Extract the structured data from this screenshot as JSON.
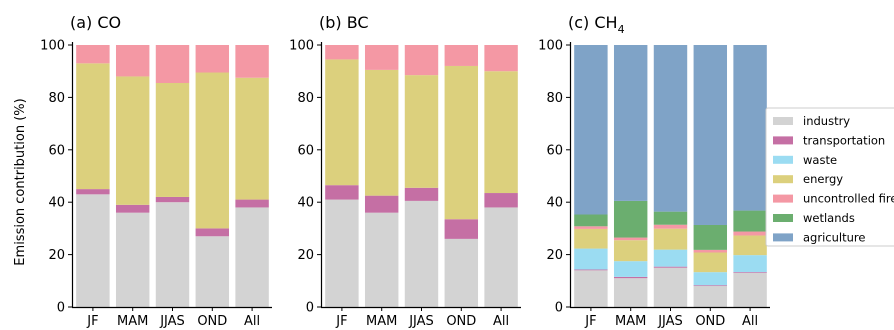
{
  "chart_data": {
    "type": "bar",
    "stacked": true,
    "ylabel": "Emission contribution (%)",
    "ylim": [
      0,
      100
    ],
    "yticks": [
      0,
      20,
      40,
      60,
      80,
      100
    ],
    "categories": [
      "JF",
      "MAM",
      "JJAS",
      "OND",
      "All"
    ],
    "legend": {
      "placement": "right",
      "entries": [
        {
          "name": "industry",
          "color": "#d3d3d3"
        },
        {
          "name": "transportation",
          "color": "#c56fa4"
        },
        {
          "name": "waste",
          "color": "#9bdcf2"
        },
        {
          "name": "energy",
          "color": "#dcd07d"
        },
        {
          "name": "uncontrolled fire",
          "color": "#f498a4"
        },
        {
          "name": "wetlands",
          "color": "#6bae6f"
        },
        {
          "name": "agriculture",
          "color": "#7fa3c7"
        }
      ]
    },
    "panels": [
      {
        "title": "(a) CO",
        "title_sub": "",
        "series": [
          {
            "name": "industry",
            "values": [
              43,
              36,
              40,
              27,
              38
            ]
          },
          {
            "name": "transportation",
            "values": [
              2,
              3,
              2,
              3,
              3
            ]
          },
          {
            "name": "energy",
            "values": [
              48,
              49,
              43.5,
              59.5,
              46.5
            ]
          },
          {
            "name": "uncontrolled fire",
            "values": [
              7,
              12,
              14.5,
              10.5,
              12.5
            ]
          }
        ]
      },
      {
        "title": "(b) BC",
        "title_sub": "",
        "series": [
          {
            "name": "industry",
            "values": [
              41,
              36,
              40.5,
              26,
              38
            ]
          },
          {
            "name": "transportation",
            "values": [
              5.5,
              6.5,
              5,
              7.5,
              5.5
            ]
          },
          {
            "name": "energy",
            "values": [
              48,
              48,
              43,
              58.5,
              46.5
            ]
          },
          {
            "name": "uncontrolled fire",
            "values": [
              5.5,
              9.5,
              11.5,
              8,
              10
            ]
          }
        ]
      },
      {
        "title": "(c) CH",
        "title_sub": "4",
        "series": [
          {
            "name": "industry",
            "values": [
              14,
              11,
              15,
              8,
              13
            ]
          },
          {
            "name": "transportation",
            "values": [
              0.3,
              0.5,
              0.4,
              0.3,
              0.3
            ]
          },
          {
            "name": "waste",
            "values": [
              8,
              6,
              6.5,
              5,
              6.5
            ]
          },
          {
            "name": "energy",
            "values": [
              7.5,
              8,
              8,
              7.5,
              7.5
            ]
          },
          {
            "name": "uncontrolled fire",
            "values": [
              1,
              1,
              1.5,
              1,
              1.5
            ]
          },
          {
            "name": "wetlands",
            "values": [
              4.5,
              14,
              5,
              9.5,
              8
            ]
          },
          {
            "name": "agriculture",
            "values": [
              64.7,
              59.5,
              63.6,
              68.7,
              63.2
            ]
          }
        ]
      }
    ]
  }
}
